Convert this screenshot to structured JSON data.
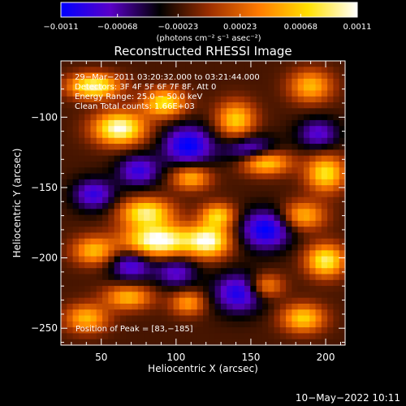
{
  "chart_data": {
    "type": "heatmap",
    "title": "Reconstructed RHESSI Image",
    "xlabel": "Heliocentric X (arcsec)",
    "ylabel": "Heliocentric Y (arcsec)",
    "xlim": [
      23,
      213
    ],
    "ylim": [
      -262,
      -60
    ],
    "x_ticks": [
      50,
      100,
      150,
      200
    ],
    "y_ticks": [
      -100,
      -150,
      -200,
      -250
    ],
    "x_tick_labels": [
      "50",
      "100",
      "150",
      "200"
    ],
    "y_tick_labels": [
      "−100",
      "−150",
      "−200",
      "−250"
    ],
    "colorbar": {
      "range": [
        -0.0011,
        0.0011
      ],
      "ticks": [
        -0.0011,
        -0.00068,
        -0.00023,
        0.00023,
        0.00068,
        0.0011
      ],
      "tick_labels": [
        "−0.0011",
        "−0.00068",
        "−0.00023",
        "0.00023",
        "0.00068",
        "0.0011"
      ],
      "units_label": "(photons cm⁻² s⁻¹ asec⁻²)",
      "colormap": [
        "#0000ff",
        "#5a00c8",
        "#000000",
        "#9b2e00",
        "#ff7a00",
        "#ffe000",
        "#ffffff"
      ]
    },
    "annotations": [
      "29−Mar−2011 03:20:32.000 to 03:21:44.000",
      "Detectors: 3F 4F 5F 6F 7F 8F, Att 0",
      "Energy Range: 25.0 − 50.0 keV",
      "Clean     Total counts: 1.66E+03"
    ],
    "peak_label": "Position of Peak = [83,−185]",
    "peak": [
      83,
      -185
    ],
    "map": {
      "baseline": -0.0002,
      "blobs": [
        {
          "x": 45,
          "y": -78,
          "sx": 12,
          "sy": 6,
          "amp": 0.0012
        },
        {
          "x": 62,
          "y": -108,
          "sx": 12,
          "sy": 8,
          "amp": 0.0013
        },
        {
          "x": 92,
          "y": -90,
          "sx": 10,
          "sy": 7,
          "amp": 0.001
        },
        {
          "x": 140,
          "y": -102,
          "sx": 9,
          "sy": 9,
          "amp": 0.0009
        },
        {
          "x": 158,
          "y": -132,
          "sx": 12,
          "sy": 6,
          "amp": 0.0012
        },
        {
          "x": 190,
          "y": -78,
          "sx": 10,
          "sy": 8,
          "amp": 0.0008
        },
        {
          "x": 200,
          "y": -140,
          "sx": 9,
          "sy": 9,
          "amp": 0.001
        },
        {
          "x": 110,
          "y": -143,
          "sx": 9,
          "sy": 6,
          "amp": 0.0008
        },
        {
          "x": 80,
          "y": -168,
          "sx": 12,
          "sy": 7,
          "amp": 0.0011
        },
        {
          "x": 88,
          "y": -188,
          "sx": 16,
          "sy": 8,
          "amp": 0.0014
        },
        {
          "x": 45,
          "y": -195,
          "sx": 10,
          "sy": 7,
          "amp": 0.0008
        },
        {
          "x": 122,
          "y": -188,
          "sx": 10,
          "sy": 8,
          "amp": 0.0012
        },
        {
          "x": 128,
          "y": -170,
          "sx": 8,
          "sy": 6,
          "amp": 0.0009
        },
        {
          "x": 185,
          "y": -170,
          "sx": 10,
          "sy": 7,
          "amp": 0.0008
        },
        {
          "x": 200,
          "y": -202,
          "sx": 9,
          "sy": 8,
          "amp": 0.0011
        },
        {
          "x": 68,
          "y": -228,
          "sx": 11,
          "sy": 6,
          "amp": 0.0008
        },
        {
          "x": 40,
          "y": -243,
          "sx": 10,
          "sy": 7,
          "amp": 0.0008
        },
        {
          "x": 185,
          "y": -243,
          "sx": 10,
          "sy": 7,
          "amp": 0.0009
        },
        {
          "x": 108,
          "y": -232,
          "sx": 8,
          "sy": 6,
          "amp": 0.0007
        },
        {
          "x": 160,
          "y": -220,
          "sx": 8,
          "sy": 6,
          "amp": 0.0007
        },
        {
          "x": 108,
          "y": -120,
          "sx": 12,
          "sy": 10,
          "amp": -0.0009
        },
        {
          "x": 150,
          "y": -125,
          "sx": 12,
          "sy": 8,
          "amp": -0.0008
        },
        {
          "x": 75,
          "y": -138,
          "sx": 10,
          "sy": 8,
          "amp": -0.0007
        },
        {
          "x": 160,
          "y": -180,
          "sx": 12,
          "sy": 10,
          "amp": -0.0009
        },
        {
          "x": 70,
          "y": -205,
          "sx": 10,
          "sy": 8,
          "amp": -0.0007
        },
        {
          "x": 142,
          "y": -225,
          "sx": 12,
          "sy": 10,
          "amp": -0.0008
        },
        {
          "x": 45,
          "y": -155,
          "sx": 10,
          "sy": 8,
          "amp": -0.0007
        },
        {
          "x": 195,
          "y": -112,
          "sx": 10,
          "sy": 8,
          "amp": -0.0006
        },
        {
          "x": 100,
          "y": -210,
          "sx": 10,
          "sy": 8,
          "amp": -0.0006
        }
      ]
    }
  },
  "footer": {
    "date": "10−May−2022 10:11"
  }
}
